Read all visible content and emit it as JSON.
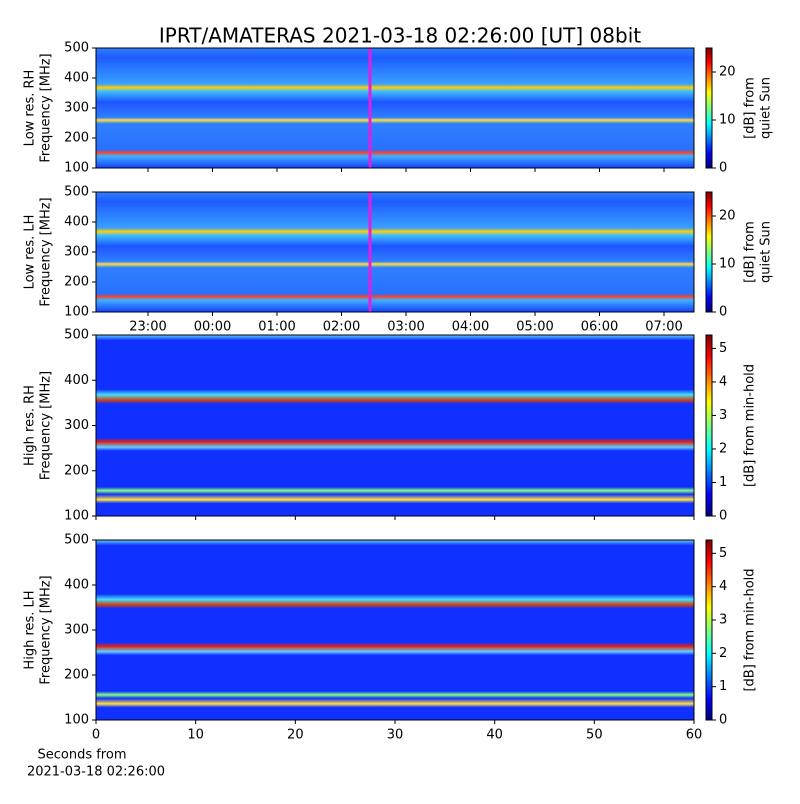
{
  "title": "IPRT/AMATERAS 2021-03-18 02:26:00 [UT]   08bit",
  "x_label": [
    "Seconds from",
    "2021-03-18 02:26:00"
  ],
  "chart_data": [
    {
      "type": "heatmap",
      "y_label": [
        "Low res. RH",
        "Frequency [MHz]"
      ],
      "ylim": [
        100,
        500
      ],
      "yticks": [
        100,
        200,
        300,
        400,
        500
      ],
      "xticks": [
        "23:00",
        "00:00",
        "01:00",
        "02:00",
        "03:00",
        "04:00",
        "05:00",
        "06:00",
        "07:00"
      ],
      "show_xlabels": false,
      "colorbar": {
        "label": [
          "[dB] from",
          "quiet Sun"
        ],
        "lim": [
          0,
          25
        ],
        "ticks": [
          0,
          10,
          20
        ]
      }
    },
    {
      "type": "heatmap",
      "y_label": [
        "Low res. LH",
        "Frequency [MHz]"
      ],
      "ylim": [
        100,
        500
      ],
      "yticks": [
        100,
        200,
        300,
        400,
        500
      ],
      "xticks": [
        "23:00",
        "00:00",
        "01:00",
        "02:00",
        "03:00",
        "04:00",
        "05:00",
        "06:00",
        "07:00"
      ],
      "show_xlabels": true,
      "colorbar": {
        "label": [
          "[dB] from",
          "quiet Sun"
        ],
        "lim": [
          0,
          25
        ],
        "ticks": [
          0,
          10,
          20
        ]
      }
    },
    {
      "type": "heatmap",
      "y_label": [
        "High res. RH",
        "Frequency [MHz]"
      ],
      "ylim": [
        100,
        500
      ],
      "yticks": [
        100,
        200,
        300,
        400,
        500
      ],
      "xlim": [
        0,
        60
      ],
      "xticks": [
        0,
        10,
        20,
        30,
        40,
        50,
        60
      ],
      "show_xlabels": false,
      "colorbar": {
        "label": [
          "[dB] from min-hold"
        ],
        "lim": [
          0,
          5.4
        ],
        "ticks": [
          0,
          1,
          2,
          3,
          4,
          5
        ]
      }
    },
    {
      "type": "heatmap",
      "y_label": [
        "High res. LH",
        "Frequency [MHz]"
      ],
      "ylim": [
        100,
        500
      ],
      "yticks": [
        100,
        200,
        300,
        400,
        500
      ],
      "xlim": [
        0,
        60
      ],
      "xticks": [
        0,
        10,
        20,
        30,
        40,
        50,
        60
      ],
      "show_xlabels": true,
      "colorbar": {
        "label": [
          "[dB] from min-hold"
        ],
        "lim": [
          0,
          5.4
        ],
        "ticks": [
          0,
          1,
          2,
          3,
          4,
          5
        ]
      }
    }
  ]
}
